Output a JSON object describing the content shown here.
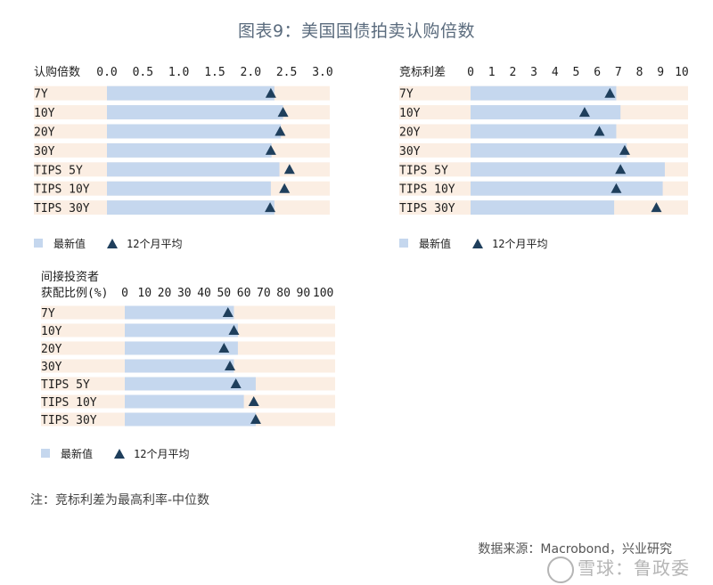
{
  "title": "图表9：美国国债拍卖认购倍数",
  "note": "注：竞标利差为最高利率-中位数",
  "source": "数据来源：Macrobond，兴业研究",
  "watermark": "雪球：鲁政委",
  "colors": {
    "bar": "#c5d7ee",
    "band": "#fbeee3",
    "marker": "#1f3f5c",
    "title": "#5a6b7d"
  },
  "chart_data": [
    {
      "type": "bar",
      "orientation": "horizontal",
      "axis_title": "认购倍数",
      "categories": [
        "7Y",
        "10Y",
        "20Y",
        "30Y",
        "TIPS 5Y",
        "TIPS 10Y",
        "TIPS 30Y"
      ],
      "ticks": [
        "0.0",
        "0.5",
        "1.0",
        "1.5",
        "2.0",
        "2.5",
        "3.0"
      ],
      "xlim": [
        0,
        3.1
      ],
      "series": [
        {
          "name": "最新值",
          "kind": "bar",
          "values": [
            2.33,
            2.45,
            2.42,
            2.29,
            2.4,
            2.28,
            2.33
          ]
        },
        {
          "name": "12个月平均",
          "kind": "marker",
          "values": [
            2.28,
            2.45,
            2.41,
            2.28,
            2.54,
            2.47,
            2.27
          ]
        }
      ],
      "legend": [
        "最新值",
        "12个月平均"
      ]
    },
    {
      "type": "bar",
      "orientation": "horizontal",
      "axis_title": "竞标利差",
      "categories": [
        "7Y",
        "10Y",
        "20Y",
        "30Y",
        "TIPS 5Y",
        "TIPS 10Y",
        "TIPS 30Y"
      ],
      "ticks": [
        "0",
        "1",
        "2",
        "3",
        "4",
        "5",
        "6",
        "7",
        "8",
        "9",
        "10"
      ],
      "xlim": [
        0,
        10.3
      ],
      "series": [
        {
          "name": "最新值",
          "kind": "bar",
          "values": [
            6.9,
            7.1,
            6.9,
            7.4,
            9.2,
            9.1,
            6.8
          ]
        },
        {
          "name": "12个月平均",
          "kind": "marker",
          "values": [
            6.6,
            5.4,
            6.1,
            7.3,
            7.1,
            6.9,
            8.8
          ]
        }
      ],
      "legend": [
        "最新值",
        "12个月平均"
      ]
    },
    {
      "type": "bar",
      "orientation": "horizontal",
      "axis_title": [
        "间接投资者",
        "获配比例(%)"
      ],
      "categories": [
        "7Y",
        "10Y",
        "20Y",
        "30Y",
        "TIPS 5Y",
        "TIPS 10Y",
        "TIPS 30Y"
      ],
      "ticks": [
        "0",
        "10",
        "20",
        "30",
        "40",
        "50",
        "60",
        "70",
        "80",
        "90",
        "100"
      ],
      "xlim": [
        0,
        106
      ],
      "series": [
        {
          "name": "最新值",
          "kind": "bar",
          "values": [
            55,
            57,
            57,
            55,
            66,
            60,
            66
          ]
        },
        {
          "name": "12个月平均",
          "kind": "marker",
          "values": [
            52,
            55,
            50,
            53,
            56,
            65,
            66
          ]
        }
      ],
      "legend": [
        "最新值",
        "12个月平均"
      ]
    }
  ]
}
